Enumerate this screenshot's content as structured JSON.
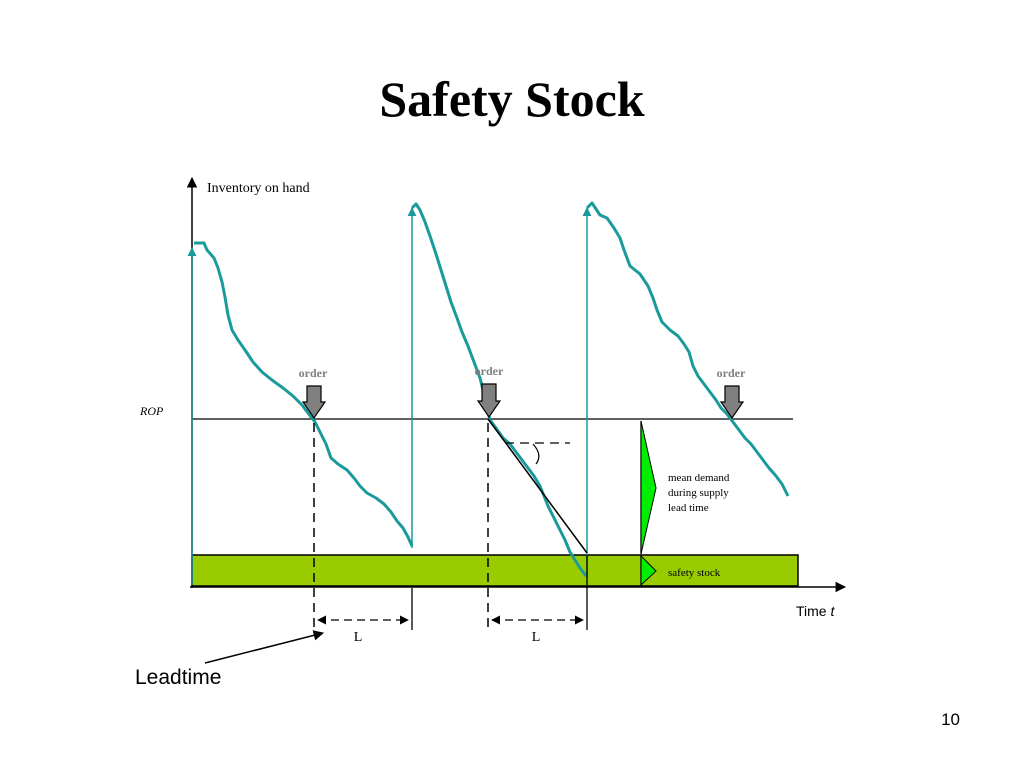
{
  "slide": {
    "title": "Safety Stock",
    "page_number": "10"
  },
  "diagram": {
    "y_axis_label": "Inventory on hand",
    "x_axis_label": "Time",
    "x_axis_var": "t",
    "rop_label": "ROP",
    "order_labels": [
      "order",
      "order",
      "order"
    ],
    "lead_labels": [
      "L",
      "L"
    ],
    "mean_demand_lines": [
      "mean demand",
      "during supply",
      "lead time"
    ],
    "safety_stock_label": "safety stock",
    "leadtime_callout": "Leadtime"
  },
  "colors": {
    "inventory_curve": "#1a9a9a",
    "safety_stock_band": "#99cc00",
    "bracket_fill": "#00ee00",
    "order_arrow": "#808080"
  }
}
